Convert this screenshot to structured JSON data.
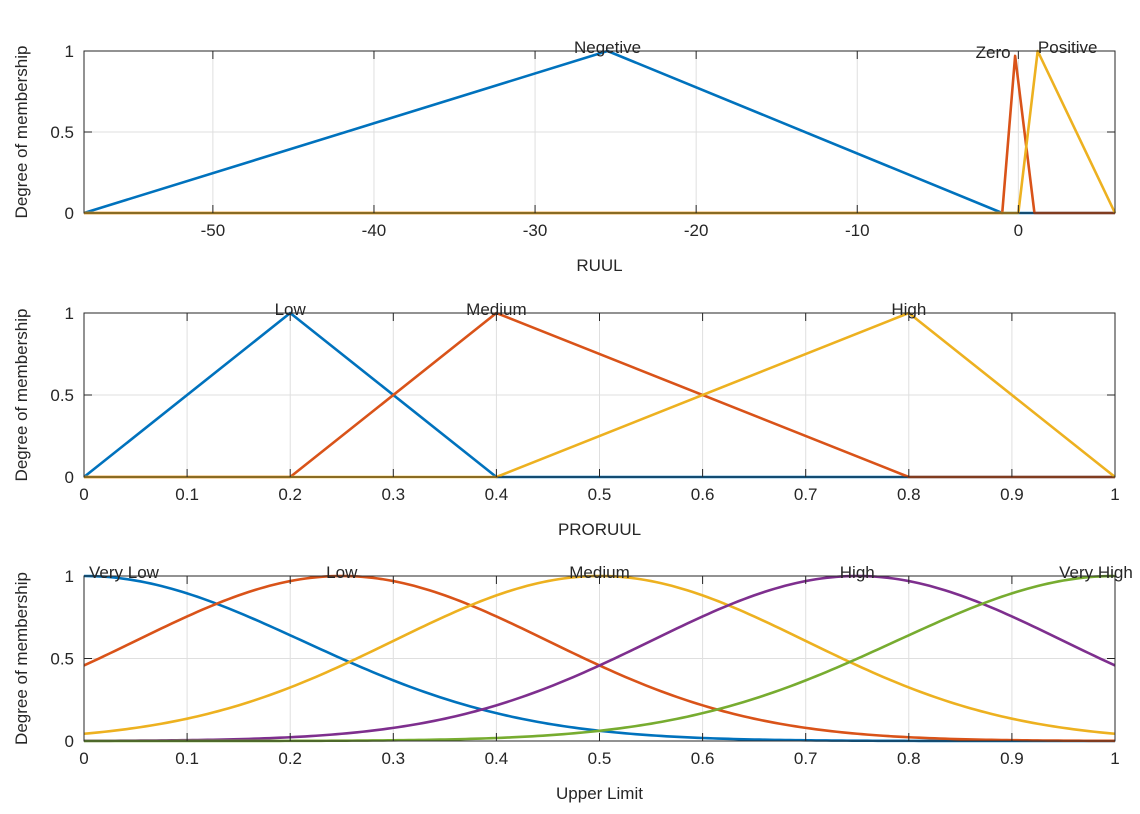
{
  "chart_data": [
    {
      "type": "line",
      "subtype": "triangular membership functions",
      "xlabel": "RUUL",
      "ylabel": "Degree of membership",
      "xlim": [
        -58,
        6
      ],
      "ylim": [
        0,
        1
      ],
      "x_ticks": [
        -50,
        -40,
        -30,
        -20,
        -10,
        0
      ],
      "y_ticks": [
        0,
        0.5,
        1
      ],
      "grid": true,
      "series": [
        {
          "name": "Negetive",
          "color": "#0072bd",
          "x": [
            -58,
            -25.5,
            -1
          ],
          "y": [
            0,
            1,
            0
          ]
        },
        {
          "name": "Zero",
          "color": "#d95319",
          "x": [
            -1,
            -0.2,
            1
          ],
          "y": [
            0,
            0.97,
            0
          ]
        },
        {
          "name": "Positive",
          "color": "#edb120",
          "x": [
            0,
            1.2,
            6
          ],
          "y": [
            0,
            1,
            0
          ]
        }
      ]
    },
    {
      "type": "line",
      "subtype": "triangular membership functions",
      "xlabel": "PRORUUL",
      "ylabel": "Degree of membership",
      "xlim": [
        0,
        1
      ],
      "ylim": [
        0,
        1
      ],
      "x_ticks": [
        0,
        0.1,
        0.2,
        0.3,
        0.4,
        0.5,
        0.6,
        0.7,
        0.8,
        0.9,
        1
      ],
      "y_ticks": [
        0,
        0.5,
        1
      ],
      "grid": true,
      "series": [
        {
          "name": "Low",
          "color": "#0072bd",
          "x": [
            0,
            0.2,
            0.4
          ],
          "y": [
            0,
            1,
            0
          ]
        },
        {
          "name": "Medium",
          "color": "#d95319",
          "x": [
            0.2,
            0.4,
            0.8
          ],
          "y": [
            0,
            1,
            0
          ]
        },
        {
          "name": "High",
          "color": "#edb120",
          "x": [
            0.4,
            0.8,
            1.0
          ],
          "y": [
            0,
            1,
            0
          ]
        }
      ]
    },
    {
      "type": "line",
      "subtype": "gaussian membership functions",
      "xlabel": "Upper Limit",
      "ylabel": "Degree of membership",
      "xlim": [
        0,
        1
      ],
      "ylim": [
        0,
        1
      ],
      "x_ticks": [
        0,
        0.1,
        0.2,
        0.3,
        0.4,
        0.5,
        0.6,
        0.7,
        0.8,
        0.9,
        1
      ],
      "y_ticks": [
        0,
        0.5,
        1
      ],
      "grid": true,
      "series": [
        {
          "name": "Very Low",
          "color": "#0072bd",
          "center": 0.0,
          "sigma": 0.212
        },
        {
          "name": "Low",
          "color": "#d95319",
          "center": 0.25,
          "sigma": 0.2
        },
        {
          "name": "Medium",
          "color": "#edb120",
          "center": 0.5,
          "sigma": 0.2
        },
        {
          "name": "High",
          "color": "#7e2f8e",
          "center": 0.75,
          "sigma": 0.2
        },
        {
          "name": "Very High",
          "color": "#77ac30",
          "center": 1.0,
          "sigma": 0.212
        }
      ]
    }
  ]
}
